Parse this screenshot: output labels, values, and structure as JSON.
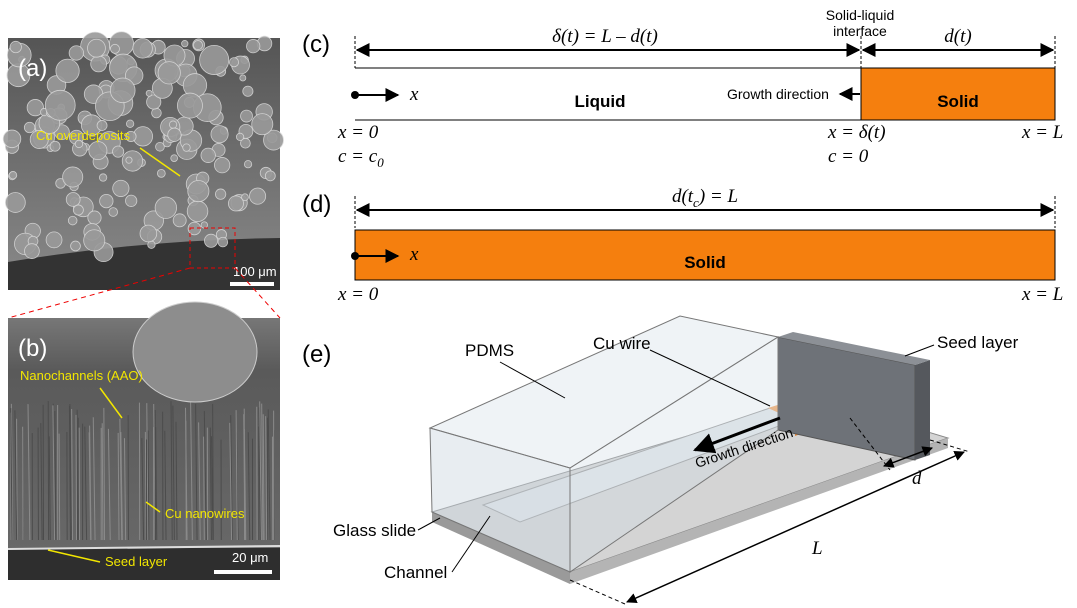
{
  "panels": {
    "a": {
      "label": "(a)",
      "annotation": "Cu overdeposits",
      "scale_bar": "100 μm"
    },
    "b": {
      "label": "(b)",
      "annotations": [
        "Nanochannels (AAO)",
        "Cu nanowires",
        "Seed layer"
      ],
      "scale_bar": "20 μm"
    },
    "c": {
      "label": "(c)",
      "liquid_length": "δ(t) = L – d(t)",
      "interface": [
        "Solid-liquid",
        "interface"
      ],
      "solid_length": "d(t)",
      "x_axis": "x",
      "liquid": "Liquid",
      "growth": "Growth direction",
      "solid": "Solid",
      "left_x": "x = 0",
      "left_c": {
        "text": "c = c",
        "sub": "0"
      },
      "interface_x": "x = δ(t)",
      "interface_c": "c = 0",
      "right_x": "x = L"
    },
    "d": {
      "label": "(d)",
      "length": {
        "text": "d(t",
        "sub": "c",
        "tail": ") = L"
      },
      "x_axis": "x",
      "solid": "Solid",
      "left_x": "x = 0",
      "right_x": "x = L"
    },
    "e": {
      "label": "(e)",
      "pdms": "PDMS",
      "cu_wire": "Cu wire",
      "seed_layer": "Seed layer",
      "growth": "Growth direction",
      "d": "d",
      "L": "L",
      "glass_slide": "Glass slide",
      "channel": "Channel"
    }
  }
}
